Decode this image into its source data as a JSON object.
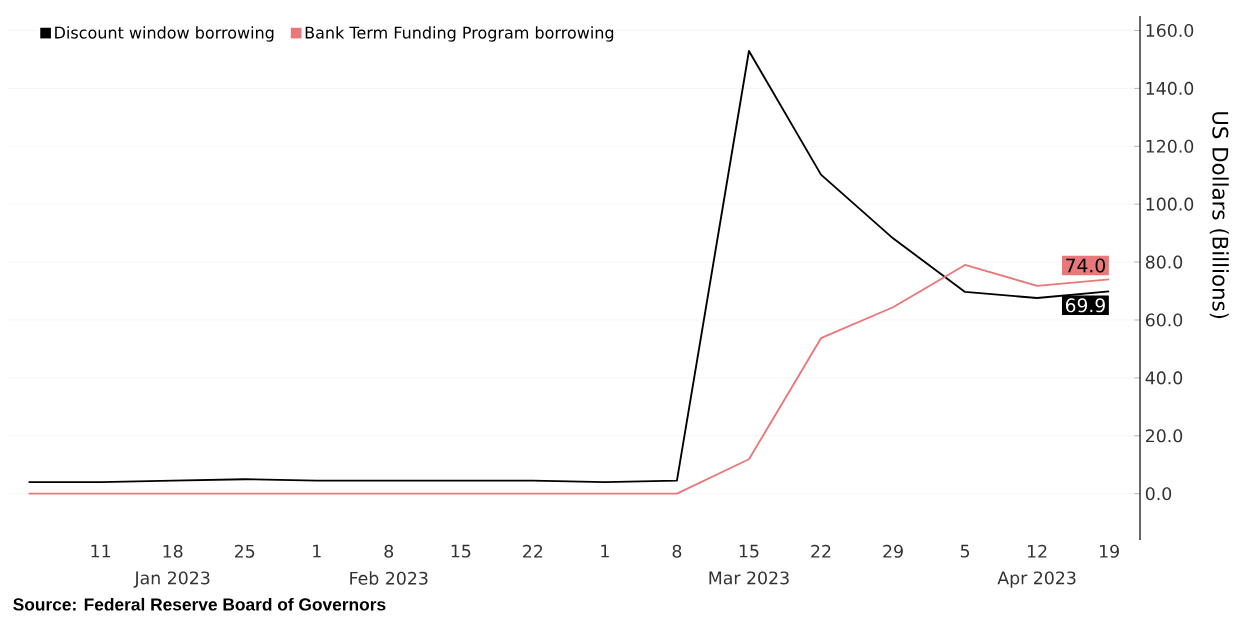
{
  "chart_data": {
    "type": "line",
    "x": [
      "2023-01-04",
      "2023-01-11",
      "2023-01-18",
      "2023-01-25",
      "2023-02-01",
      "2023-02-08",
      "2023-02-15",
      "2023-02-22",
      "2023-03-01",
      "2023-03-08",
      "2023-03-15",
      "2023-03-22",
      "2023-03-29",
      "2023-04-05",
      "2023-04-12",
      "2023-04-19"
    ],
    "series": [
      {
        "name": "Discount window borrowing",
        "color": "#000000",
        "values": [
          4.0,
          4.0,
          4.5,
          5.0,
          4.5,
          4.5,
          4.5,
          4.5,
          4.0,
          4.5,
          152.9,
          110.2,
          88.2,
          69.7,
          67.6,
          69.9
        ],
        "value_labels": [
          null,
          null,
          null,
          null,
          null,
          null,
          null,
          null,
          null,
          null,
          null,
          null,
          null,
          null,
          null,
          "69.9"
        ]
      },
      {
        "name": "Bank Term Funding Program borrowing",
        "color": "#e8787a",
        "values": [
          0,
          0,
          0,
          0,
          0,
          0,
          0,
          0,
          0,
          0,
          11.9,
          53.7,
          64.4,
          79.0,
          71.8,
          74.0
        ],
        "value_labels": [
          null,
          null,
          null,
          null,
          null,
          null,
          null,
          null,
          null,
          null,
          null,
          null,
          null,
          null,
          null,
          "74.0"
        ]
      }
    ],
    "xlim": [
      "2023-01-02",
      "2023-04-22"
    ],
    "xticks": [
      {
        "value": "2023-01-11",
        "label": "11"
      },
      {
        "value": "2023-01-18",
        "label": "18"
      },
      {
        "value": "2023-01-25",
        "label": "25"
      },
      {
        "value": "2023-02-01",
        "label": "1"
      },
      {
        "value": "2023-02-08",
        "label": "8"
      },
      {
        "value": "2023-02-15",
        "label": "15"
      },
      {
        "value": "2023-02-22",
        "label": "22"
      },
      {
        "value": "2023-03-01",
        "label": "1"
      },
      {
        "value": "2023-03-08",
        "label": "8"
      },
      {
        "value": "2023-03-15",
        "label": "15"
      },
      {
        "value": "2023-03-22",
        "label": "22"
      },
      {
        "value": "2023-03-29",
        "label": "29"
      },
      {
        "value": "2023-04-05",
        "label": "5"
      },
      {
        "value": "2023-04-12",
        "label": "12"
      },
      {
        "value": "2023-04-19",
        "label": "19"
      }
    ],
    "ylim": [
      -16,
      165
    ],
    "yticks": [
      {
        "value": 0,
        "label": "0.0"
      },
      {
        "value": 20,
        "label": "20.0"
      },
      {
        "value": 40,
        "label": "40.0"
      },
      {
        "value": 60,
        "label": "60.0"
      },
      {
        "value": 80,
        "label": "80.0"
      },
      {
        "value": 100,
        "label": "100.0"
      },
      {
        "value": 120,
        "label": "120.0"
      },
      {
        "value": 140,
        "label": "140.0"
      },
      {
        "value": 160,
        "label": "160.0"
      }
    ],
    "ylabel": "US Dollars (Billions)",
    "grid": "y",
    "legend": "top left",
    "marker": "none",
    "line_style": "solid",
    "annotations": [
      "Jan 2023",
      "Feb 2023",
      "Mar 2023",
      "Apr 2023",
      "Source: Federal Reserve Board of Governors"
    ]
  }
}
